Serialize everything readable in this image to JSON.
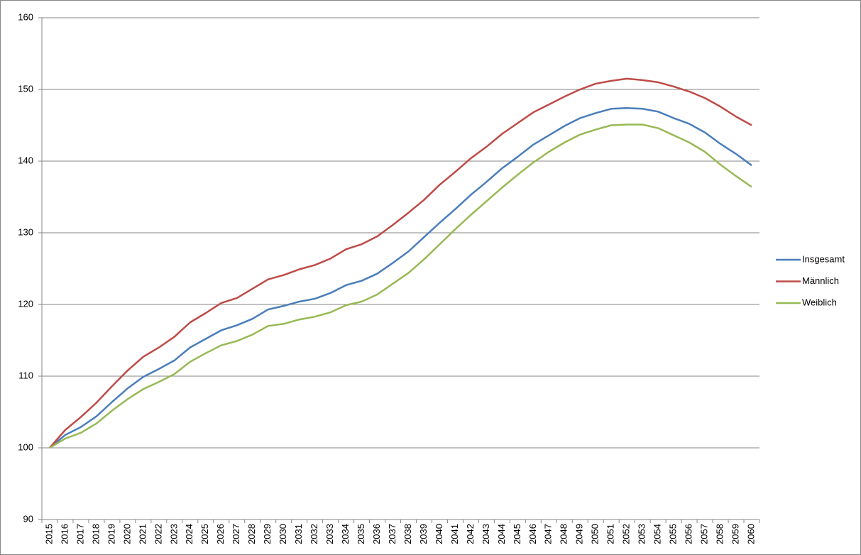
{
  "chart_data": {
    "type": "line",
    "categories": [
      "2015",
      "2016",
      "2017",
      "2018",
      "2019",
      "2020",
      "2021",
      "2022",
      "2023",
      "2024",
      "2025",
      "2026",
      "2027",
      "2028",
      "2029",
      "2030",
      "2031",
      "2032",
      "2033",
      "2034",
      "2035",
      "2036",
      "2037",
      "2038",
      "2039",
      "2040",
      "2041",
      "2042",
      "2043",
      "2044",
      "2045",
      "2046",
      "2047",
      "2048",
      "2049",
      "2050",
      "2051",
      "2052",
      "2053",
      "2054",
      "2055",
      "2056",
      "2057",
      "2058",
      "2059",
      "2060"
    ],
    "series": [
      {
        "name": "Insgesamt",
        "color": "#4a7ebb",
        "values": [
          100,
          101.8,
          102.9,
          104.4,
          106.4,
          108.3,
          109.9,
          111.0,
          112.2,
          114.0,
          115.2,
          116.4,
          117.1,
          118.0,
          119.3,
          119.8,
          120.4,
          120.8,
          121.6,
          122.7,
          123.3,
          124.3,
          125.8,
          127.4,
          129.4,
          131.4,
          133.3,
          135.3,
          137.1,
          139.0,
          140.6,
          142.3,
          143.6,
          144.9,
          146.0,
          146.7,
          147.3,
          147.4,
          147.3,
          146.9,
          146.0,
          145.2,
          144.0,
          142.4,
          141.0,
          139.4
        ]
      },
      {
        "name": "Männlich",
        "color": "#be4b48",
        "values": [
          100,
          102.5,
          104.3,
          106.3,
          108.6,
          110.8,
          112.7,
          114.0,
          115.5,
          117.5,
          118.8,
          120.2,
          120.9,
          122.2,
          123.5,
          124.1,
          124.9,
          125.5,
          126.4,
          127.7,
          128.4,
          129.5,
          131.1,
          132.8,
          134.6,
          136.7,
          138.5,
          140.4,
          142.0,
          143.8,
          145.3,
          146.8,
          147.9,
          149.0,
          150.0,
          150.8,
          151.2,
          151.5,
          151.3,
          151.0,
          150.4,
          149.7,
          148.8,
          147.6,
          146.2,
          145.0
        ]
      },
      {
        "name": "Weiblich",
        "color": "#98b954",
        "values": [
          100,
          101.3,
          102.1,
          103.4,
          105.2,
          106.8,
          108.2,
          109.2,
          110.3,
          112.0,
          113.2,
          114.3,
          114.9,
          115.8,
          117.0,
          117.3,
          117.9,
          118.3,
          118.9,
          119.9,
          120.4,
          121.4,
          122.9,
          124.4,
          126.3,
          128.4,
          130.5,
          132.5,
          134.4,
          136.3,
          138.1,
          139.8,
          141.3,
          142.6,
          143.7,
          144.4,
          145.0,
          145.1,
          145.1,
          144.6,
          143.6,
          142.6,
          141.3,
          139.5,
          137.9,
          136.4
        ]
      }
    ],
    "ylim": [
      90,
      160
    ],
    "yticks": [
      90,
      100,
      110,
      120,
      130,
      140,
      150,
      160
    ],
    "grid": true,
    "legend": "right"
  }
}
